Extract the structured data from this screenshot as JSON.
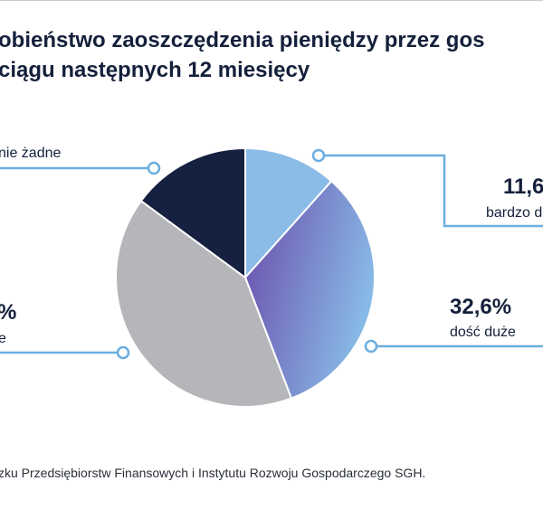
{
  "title_lines": [
    "obieństwo zaoszczędzenia pieniędzy przez gos",
    "ciągu następnych 12 miesięcy"
  ],
  "footer": "zku Przedsiębiorstw Finansowych i Instytutu Rozwoju Gospodarczego SGH.",
  "colors": {
    "bardzo_duze": "#8bbce8",
    "dosc_duze_start": "#6c55b0",
    "dosc_duze_end": "#8bc4ec",
    "grey_slice": "#b5b6b9",
    "navy_slice": "#162040",
    "leader": "#6aaee0"
  },
  "chart_data": {
    "type": "pie",
    "title": "",
    "slices": [
      {
        "category": "bardzo d",
        "pct_text": "11,6",
        "value": 11.6
      },
      {
        "category": "dość duże",
        "pct_text": "32,6%",
        "value": 32.6
      },
      {
        "category": "e",
        "pct_text": "%",
        "value": 40.9
      },
      {
        "category": "nie żadne",
        "pct_text": "",
        "value": 14.9
      }
    ]
  }
}
